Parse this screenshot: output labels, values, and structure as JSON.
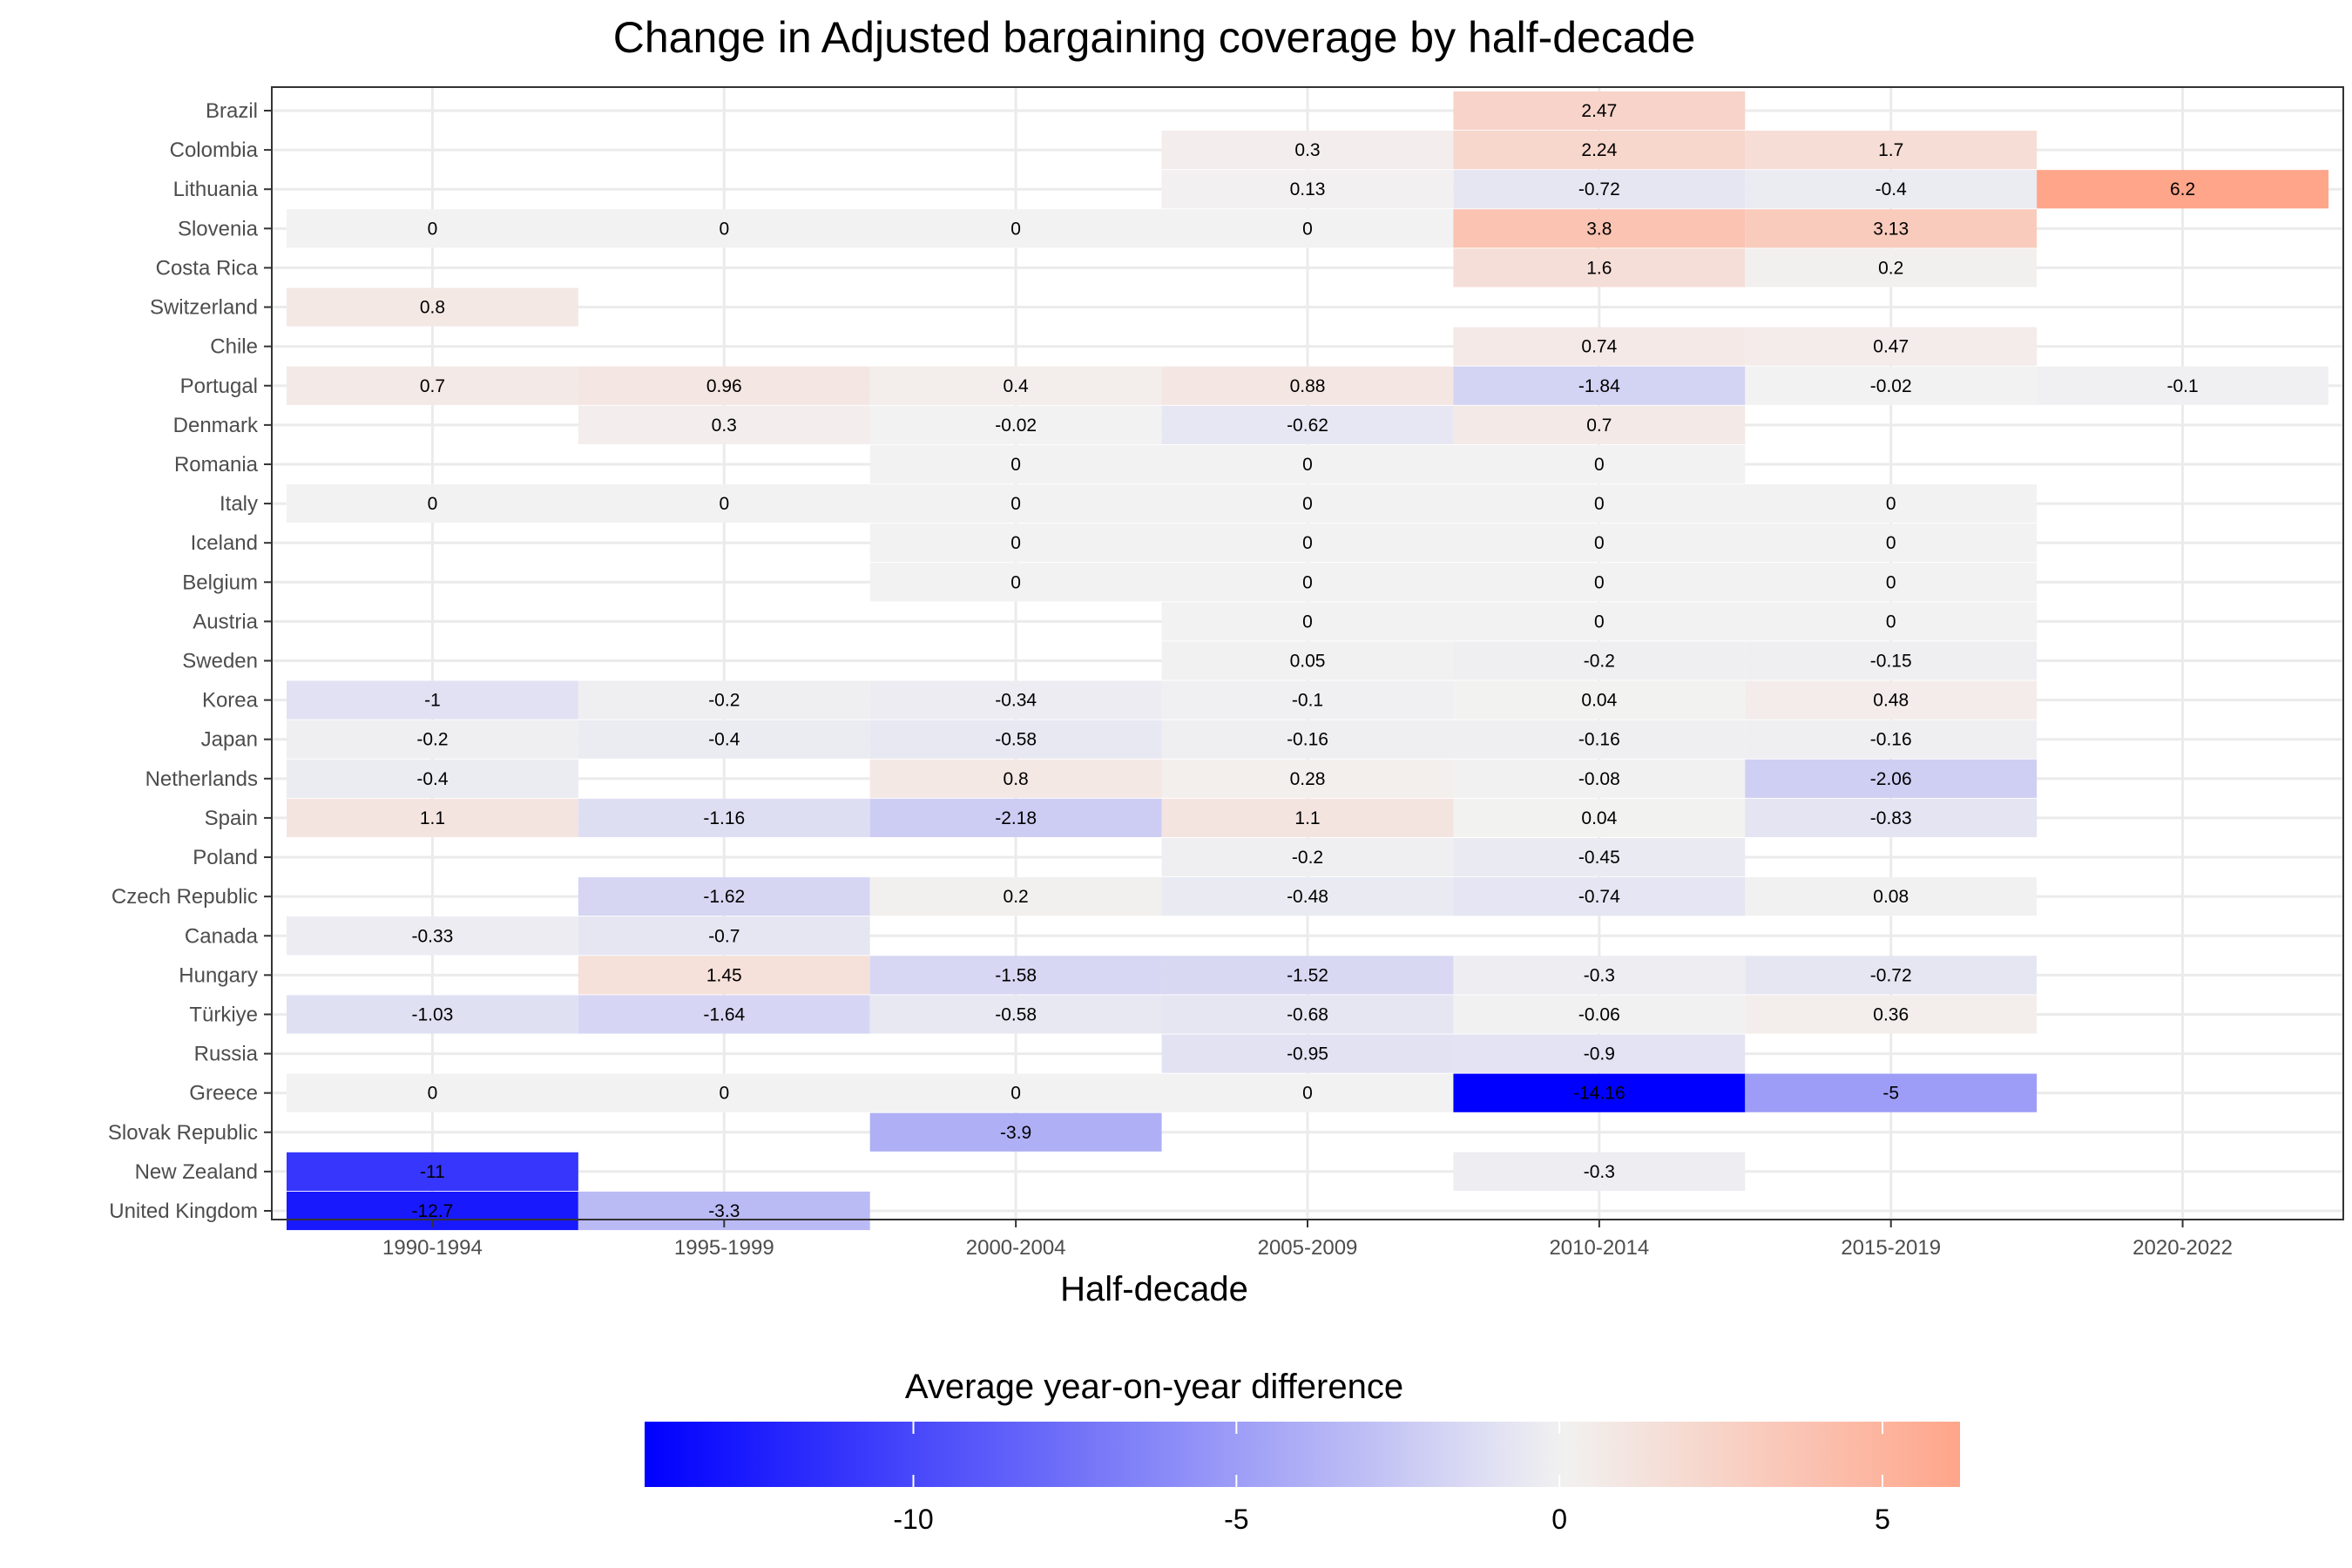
{
  "chart_data": {
    "type": "heatmap",
    "title": "Change in Adjusted bargaining coverage by half-decade",
    "xlabel": "Half-decade",
    "ylabel": "",
    "x_categories": [
      "1990-1994",
      "1995-1999",
      "2000-2004",
      "2005-2009",
      "2010-2014",
      "2015-2019",
      "2020-2022"
    ],
    "y_categories": [
      "Brazil",
      "Colombia",
      "Lithuania",
      "Slovenia",
      "Costa Rica",
      "Switzerland",
      "Chile",
      "Portugal",
      "Denmark",
      "Romania",
      "Italy",
      "Iceland",
      "Belgium",
      "Austria",
      "Sweden",
      "Korea",
      "Japan",
      "Netherlands",
      "Spain",
      "Poland",
      "Czech Republic",
      "Canada",
      "Hungary",
      "Türkiye",
      "Russia",
      "Greece",
      "Slovak Republic",
      "New Zealand",
      "United Kingdom"
    ],
    "values": [
      [
        null,
        null,
        null,
        null,
        2.47,
        null,
        null
      ],
      [
        null,
        null,
        null,
        0.3,
        2.24,
        1.7,
        null
      ],
      [
        null,
        null,
        null,
        0.13,
        -0.72,
        -0.4,
        6.2
      ],
      [
        0,
        0,
        0,
        0,
        3.8,
        3.13,
        null
      ],
      [
        null,
        null,
        null,
        null,
        1.6,
        0.2,
        null
      ],
      [
        0.8,
        null,
        null,
        null,
        null,
        null,
        null
      ],
      [
        null,
        null,
        null,
        null,
        0.74,
        0.47,
        null
      ],
      [
        0.7,
        0.96,
        0.4,
        0.88,
        -1.84,
        -0.02,
        -0.1
      ],
      [
        null,
        0.3,
        -0.02,
        -0.62,
        0.7,
        null,
        null
      ],
      [
        null,
        null,
        0,
        0,
        0,
        null,
        null
      ],
      [
        0,
        0,
        0,
        0,
        0,
        0,
        null
      ],
      [
        null,
        null,
        0,
        0,
        0,
        0,
        null
      ],
      [
        null,
        null,
        0,
        0,
        0,
        0,
        null
      ],
      [
        null,
        null,
        null,
        0,
        0,
        0,
        null
      ],
      [
        null,
        null,
        null,
        0.05,
        -0.2,
        -0.15,
        null
      ],
      [
        -1,
        -0.2,
        -0.34,
        -0.1,
        0.04,
        0.48,
        null
      ],
      [
        -0.2,
        -0.4,
        -0.58,
        -0.16,
        -0.16,
        -0.16,
        null
      ],
      [
        -0.4,
        null,
        0.8,
        0.28,
        -0.08,
        -2.06,
        null
      ],
      [
        1.1,
        -1.16,
        -2.18,
        1.1,
        0.04,
        -0.83,
        null
      ],
      [
        null,
        null,
        null,
        -0.2,
        -0.45,
        null,
        null
      ],
      [
        null,
        -1.62,
        0.2,
        -0.48,
        -0.74,
        0.08,
        null
      ],
      [
        -0.33,
        -0.7,
        null,
        null,
        null,
        null,
        null
      ],
      [
        null,
        1.45,
        -1.58,
        -1.52,
        -0.3,
        -0.72,
        null
      ],
      [
        -1.03,
        -1.64,
        -0.58,
        -0.68,
        -0.06,
        0.36,
        null
      ],
      [
        null,
        null,
        null,
        -0.95,
        -0.9,
        null,
        null
      ],
      [
        0,
        0,
        0,
        0,
        -14.16,
        -5,
        null
      ],
      [
        null,
        null,
        -3.9,
        null,
        null,
        null,
        null
      ],
      [
        -11,
        null,
        null,
        null,
        -0.3,
        null,
        null
      ],
      [
        -12.7,
        -3.3,
        null,
        null,
        null,
        null,
        null
      ]
    ],
    "legend": {
      "title": "Average year-on-year difference",
      "position": "bottom",
      "range": [
        -14.16,
        6.2
      ],
      "ticks": [
        -10,
        -5,
        0,
        5
      ],
      "colors": {
        "low": "#0000ff",
        "mid": "#f2f2f2",
        "high": "#ffa58a"
      }
    },
    "grid": true
  }
}
